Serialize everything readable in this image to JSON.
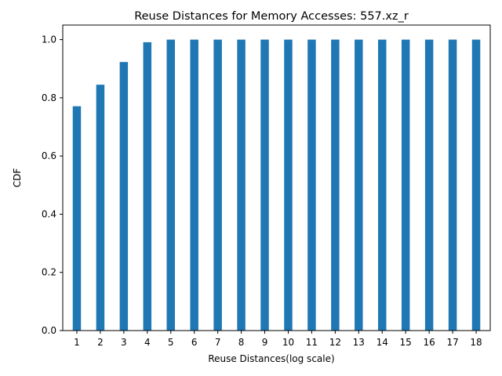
{
  "chart_data": {
    "type": "bar",
    "title": "Reuse Distances for Memory Accesses: 557.xz_r",
    "xlabel": "Reuse Distances(log scale)",
    "ylabel": "CDF",
    "categories": [
      "1",
      "2",
      "3",
      "4",
      "5",
      "6",
      "7",
      "8",
      "9",
      "10",
      "11",
      "12",
      "13",
      "14",
      "15",
      "16",
      "17",
      "18"
    ],
    "values": [
      0.771,
      0.845,
      0.923,
      0.991,
      1.0,
      1.0,
      1.0,
      1.0,
      1.0,
      1.0,
      1.0,
      1.0,
      1.0,
      1.0,
      1.0,
      1.0,
      1.0,
      1.0
    ],
    "ylim": [
      0.0,
      1.05
    ],
    "yticks": [
      0.0,
      0.2,
      0.4,
      0.6,
      0.8,
      1.0
    ],
    "ytick_labels": [
      "0.0",
      "0.2",
      "0.4",
      "0.6",
      "0.8",
      "1.0"
    ],
    "grid": false,
    "legend": "none",
    "bar_color": "#1f77b4"
  }
}
